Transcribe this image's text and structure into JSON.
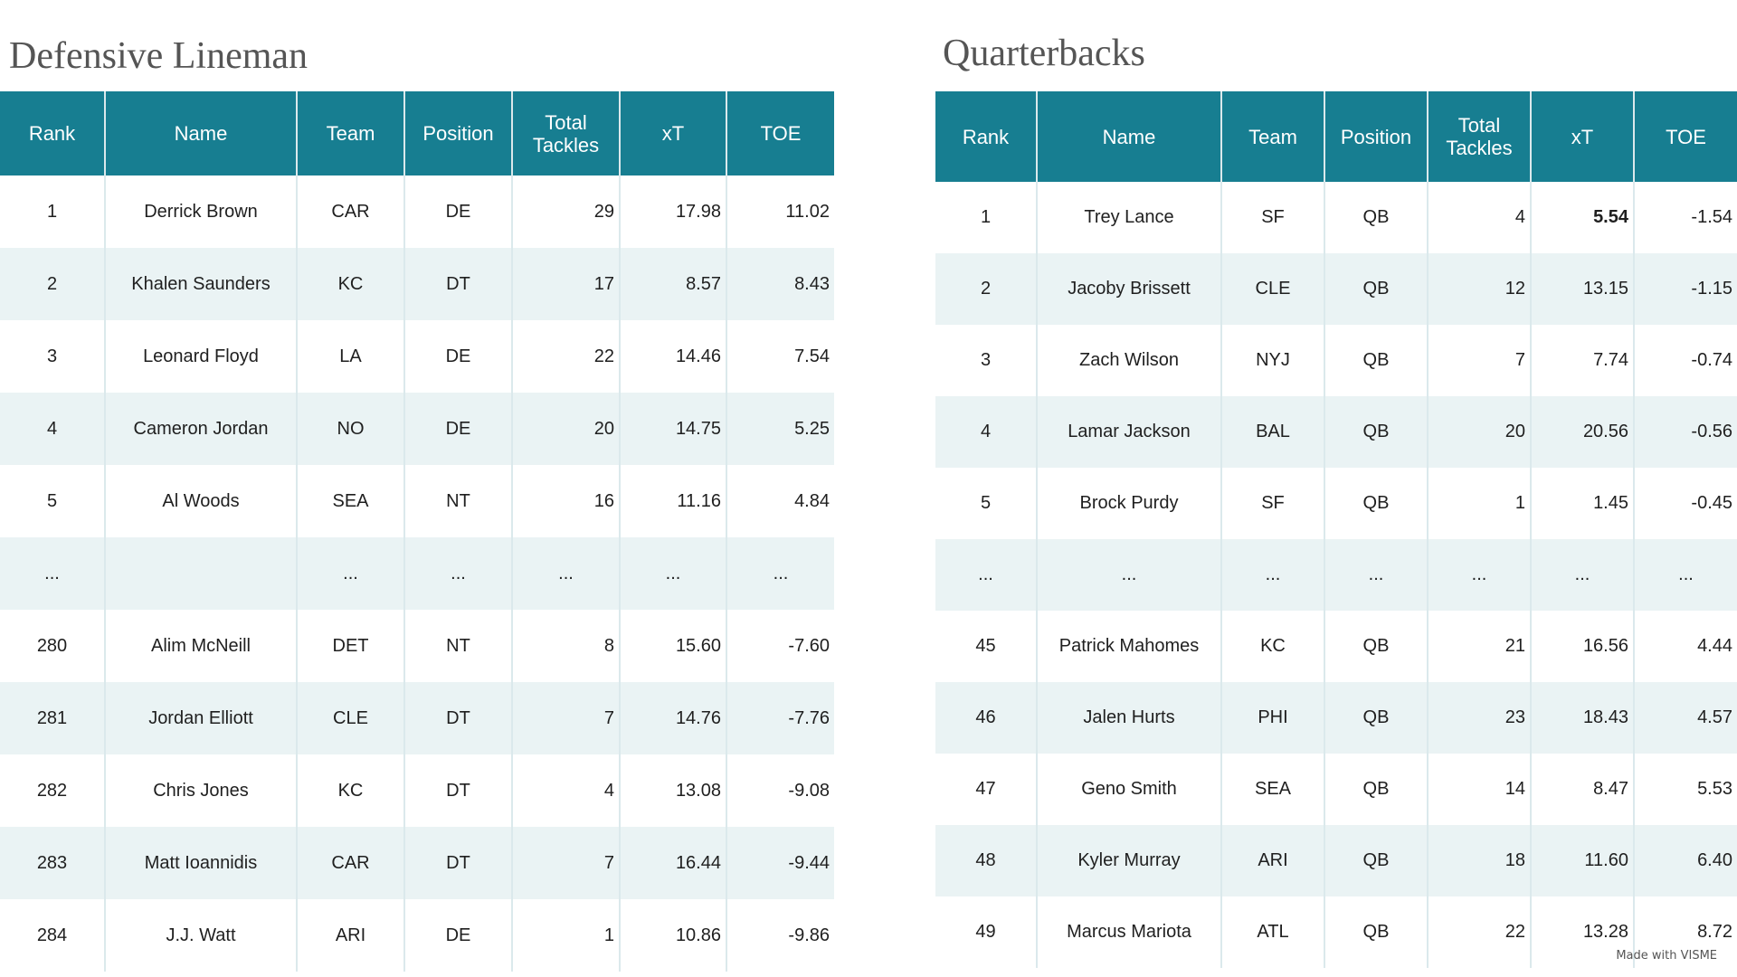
{
  "dl": {
    "title": "Defensive Lineman",
    "headers": [
      "Rank",
      "Name",
      "Team",
      "Position",
      "Total\nTackles",
      "xT",
      "TOE"
    ],
    "rows": [
      [
        "1",
        "Derrick Brown",
        "CAR",
        "DE",
        "29",
        "17.98",
        "11.02"
      ],
      [
        "2",
        "Khalen Saunders",
        "KC",
        "DT",
        "17",
        "8.57",
        "8.43"
      ],
      [
        "3",
        "Leonard Floyd",
        "LA",
        "DE",
        "22",
        "14.46",
        "7.54"
      ],
      [
        "4",
        "Cameron Jordan",
        "NO",
        "DE",
        "20",
        "14.75",
        "5.25"
      ],
      [
        "5",
        "Al Woods",
        "SEA",
        "NT",
        "16",
        "11.16",
        "4.84"
      ],
      [
        "...",
        "",
        "...",
        "...",
        "...",
        "...",
        "..."
      ],
      [
        "280",
        "Alim McNeill",
        "DET",
        "NT",
        "8",
        "15.60",
        "-7.60"
      ],
      [
        "281",
        "Jordan Elliott",
        "CLE",
        "DT",
        "7",
        "14.76",
        "-7.76"
      ],
      [
        "282",
        "Chris Jones",
        "KC",
        "DT",
        "4",
        "13.08",
        "-9.08"
      ],
      [
        "283",
        "Matt Ioannidis",
        "CAR",
        "DT",
        "7",
        "16.44",
        "-9.44"
      ],
      [
        "284",
        "J.J. Watt",
        "ARI",
        "DE",
        "1",
        "10.86",
        "-9.86"
      ]
    ]
  },
  "qb": {
    "title": "Quarterbacks",
    "headers": [
      "Rank",
      "Name",
      "Team",
      "Position",
      "Total\nTackles",
      "xT",
      "TOE"
    ],
    "rows": [
      [
        "1",
        "Trey Lance",
        "SF",
        "QB",
        "4",
        "5.54",
        "-1.54"
      ],
      [
        "2",
        "Jacoby Brissett",
        "CLE",
        "QB",
        "12",
        "13.15",
        "-1.15"
      ],
      [
        "3",
        "Zach Wilson",
        "NYJ",
        "QB",
        "7",
        "7.74",
        "-0.74"
      ],
      [
        "4",
        "Lamar Jackson",
        "BAL",
        "QB",
        "20",
        "20.56",
        "-0.56"
      ],
      [
        "5",
        "Brock Purdy",
        "SF",
        "QB",
        "1",
        "1.45",
        "-0.45"
      ],
      [
        "...",
        "...",
        "...",
        "...",
        "...",
        "...",
        "..."
      ],
      [
        "45",
        "Patrick Mahomes",
        "KC",
        "QB",
        "21",
        "16.56",
        "4.44"
      ],
      [
        "46",
        "Jalen Hurts",
        "PHI",
        "QB",
        "23",
        "18.43",
        "4.57"
      ],
      [
        "47",
        "Geno Smith",
        "SEA",
        "QB",
        "14",
        "8.47",
        "5.53"
      ],
      [
        "48",
        "Kyler Murray",
        "ARI",
        "QB",
        "18",
        "11.60",
        "6.40"
      ],
      [
        "49",
        "Marcus Mariota",
        "ATL",
        "QB",
        "22",
        "13.28",
        "8.72"
      ]
    ]
  },
  "footer": {
    "watermark": "Made with VISME"
  }
}
